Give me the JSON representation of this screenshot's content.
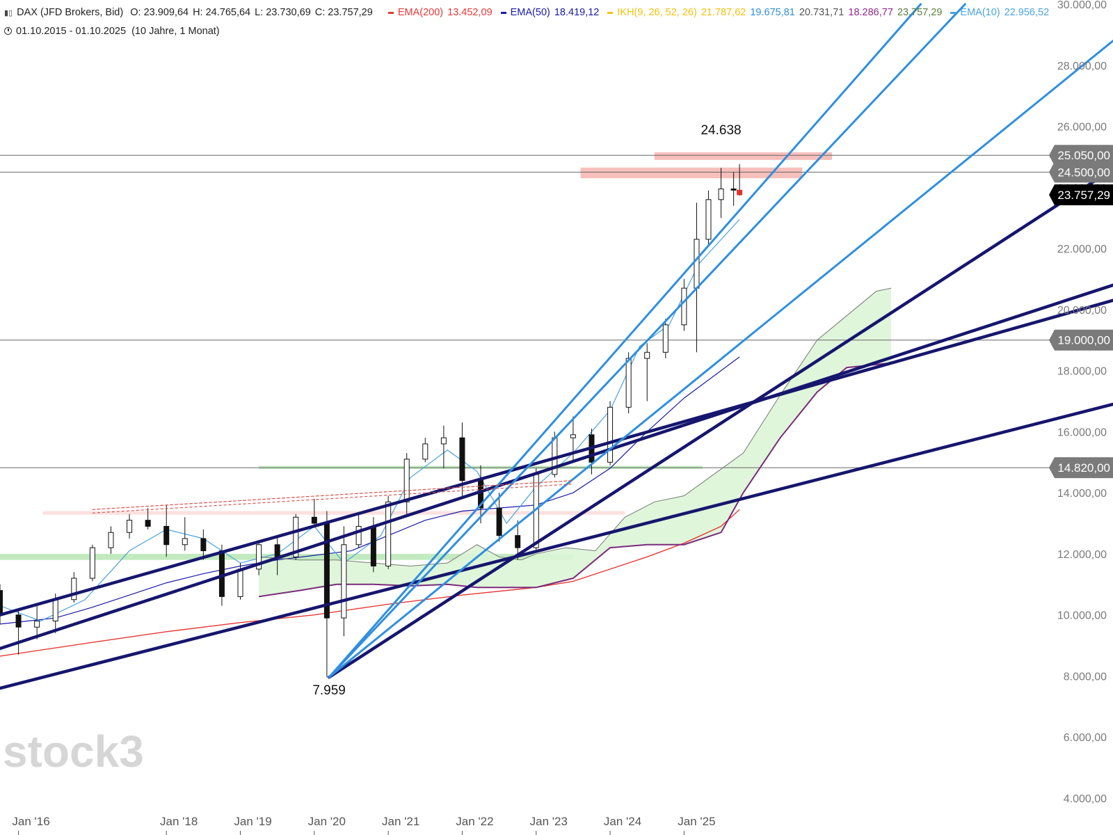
{
  "header": {
    "symbol": "DAX (JFD Brokers, Bid)",
    "ohlc": [
      {
        "key": "O:",
        "value": "23.909,64"
      },
      {
        "key": "H:",
        "value": "24.765,64"
      },
      {
        "key": "L:",
        "value": "23.730,69"
      },
      {
        "key": "C:",
        "value": "23.757,29"
      }
    ],
    "indicators": [
      {
        "label": "EMA(200)",
        "values": [
          "13.452,09"
        ],
        "color": "#e53935",
        "value_colors": [
          "#e53935"
        ]
      },
      {
        "label": "EMA(50)",
        "values": [
          "18.419,12"
        ],
        "color": "#1a1aa6",
        "value_colors": [
          "#1a1aa6"
        ]
      },
      {
        "label": "IKH(9, 26, 52, 26)",
        "values": [
          "21.787,62",
          "19.675,81",
          "20.731,71",
          "18.286,77",
          "23.757,29"
        ],
        "color": "#f4c20d",
        "value_colors": [
          "#f4c20d",
          "#2f8fd8",
          "#555555",
          "#8e2a8e",
          "#5a7f3a"
        ]
      },
      {
        "label": "EMA(10)",
        "values": [
          "22.956,52"
        ],
        "color": "#4aa3df",
        "value_colors": [
          "#4aa3df"
        ]
      }
    ],
    "period": "01.10.2015 - 01.10.2025",
    "range": "(10 Jahre, 1 Monat)"
  },
  "colors": {
    "candle_up": "#ffffff",
    "candle_down": "#111111",
    "ema200": "#e53935",
    "ema50": "#1a1aa6",
    "ema10": "#4aa3df",
    "cloud": "#dcf5d6",
    "cloud_line_a": "#777777",
    "cloud_line_b": "#7a2a7a",
    "trend_dark": "#16166e",
    "trend_light": "#2f8fe0",
    "resistance_zone": "#f08a84",
    "support_zone": "#8fd98a",
    "last_price_bg": "#000000"
  },
  "chart_data": {
    "type": "candlestick",
    "title": "DAX (JFD Brokers, Bid)",
    "timeframe": "1 Monat",
    "y_axis": {
      "ticks": [
        4000,
        6000,
        8000,
        10000,
        12000,
        14000,
        16000,
        18000,
        20000,
        22000,
        24000,
        26000,
        28000,
        30000
      ],
      "tick_labels": [
        "4.000,00",
        "6.000,00",
        "8.000,00",
        "10.000,00",
        "12.000,00",
        "14.000,00",
        "16.000,00",
        "18.000,00",
        "20.000,00",
        "22.000,00",
        "24.000,00",
        "26.000,00",
        "28.000,00",
        "30.000,00"
      ],
      "range": [
        4000,
        30000
      ]
    },
    "x_axis": {
      "ticks": [
        2016,
        2018,
        2019,
        2020,
        2021,
        2022,
        2023,
        2024,
        2025
      ],
      "tick_labels": [
        "Jan '16",
        "Jan '18",
        "Jan '19",
        "Jan '20",
        "Jan '21",
        "Jan '22",
        "Jan '23",
        "Jan '24",
        "Jan '25"
      ],
      "range": [
        2015.75,
        2030.8
      ]
    },
    "horizontal_levels": [
      {
        "value": 25050,
        "label": "25.050,00"
      },
      {
        "value": 24500,
        "label": "24.500,00"
      },
      {
        "value": 19000,
        "label": "19.000,00"
      },
      {
        "value": 14820,
        "label": "14.820,00"
      }
    ],
    "last_price": {
      "value": 23757.29,
      "label": "23.757,29"
    },
    "annotations": [
      {
        "text": "24.638",
        "x": 2025.5,
        "y": 24638
      },
      {
        "text": "7.959",
        "x": 2020.2,
        "y": 7959
      }
    ],
    "zones": [
      {
        "type": "resistance",
        "x": [
          2024.6,
          2027.0
        ],
        "y": [
          24900,
          25150
        ]
      },
      {
        "type": "resistance",
        "x": [
          2023.6,
          2026.6
        ],
        "y": [
          24300,
          24650
        ]
      },
      {
        "type": "support",
        "x": [
          2015.75,
          2023.5
        ],
        "y": [
          11800,
          12000
        ]
      },
      {
        "type": "support",
        "x": [
          2019.25,
          2025.25
        ],
        "y": [
          14780,
          14880
        ]
      },
      {
        "type": "faded_resistance",
        "x": [
          2016.33,
          2024.2
        ],
        "y": [
          13280,
          13400
        ]
      }
    ],
    "trendlines": [
      {
        "style": "dark",
        "points": [
          [
            2015.75,
            10000
          ],
          [
            2030.8,
            20300
          ]
        ]
      },
      {
        "style": "dark",
        "points": [
          [
            2015.75,
            8900
          ],
          [
            2030.8,
            20800
          ]
        ]
      },
      {
        "style": "dark",
        "points": [
          [
            2015.75,
            7600
          ],
          [
            2030.8,
            16900
          ]
        ]
      },
      {
        "style": "dark",
        "points": [
          [
            2020.2,
            7959
          ],
          [
            2030.8,
            24600
          ]
        ]
      },
      {
        "style": "light",
        "points": [
          [
            2020.2,
            7959
          ],
          [
            2028.8,
            30000
          ]
        ]
      },
      {
        "style": "light",
        "points": [
          [
            2020.2,
            7959
          ],
          [
            2028.2,
            30000
          ]
        ]
      },
      {
        "style": "light",
        "points": [
          [
            2020.2,
            7959
          ],
          [
            2030.8,
            28800
          ]
        ]
      },
      {
        "style": "dashed_red",
        "points": [
          [
            2017.0,
            13450
          ],
          [
            2023.5,
            14400
          ]
        ]
      }
    ],
    "series": [
      {
        "name": "EMA(200)",
        "type": "line",
        "color": "#e53935",
        "x": [
          2015.75,
          2017.0,
          2018.0,
          2019.0,
          2020.0,
          2021.0,
          2022.0,
          2023.0,
          2023.5,
          2024.0,
          2024.5,
          2025.0,
          2025.5,
          2025.75
        ],
        "y": [
          8650,
          9100,
          9450,
          9750,
          10000,
          10350,
          10650,
          10900,
          11100,
          11500,
          11900,
          12350,
          12900,
          13450
        ]
      },
      {
        "name": "EMA(50)",
        "type": "line",
        "color": "#1a1aa6",
        "x": [
          2015.75,
          2016.5,
          2017.0,
          2017.5,
          2018.0,
          2018.5,
          2019.0,
          2019.5,
          2020.0,
          2020.5,
          2021.0,
          2021.5,
          2022.0,
          2022.5,
          2023.0,
          2023.5,
          2024.0,
          2024.5,
          2025.0,
          2025.75
        ],
        "y": [
          9700,
          9900,
          10250,
          10650,
          11050,
          11350,
          11600,
          11800,
          11950,
          12100,
          12600,
          13100,
          13400,
          13500,
          13600,
          14000,
          14800,
          16000,
          17100,
          18450
        ]
      },
      {
        "name": "EMA(10)",
        "type": "line",
        "color": "#4aa3df",
        "x": [
          2015.75,
          2016.3,
          2016.9,
          2017.5,
          2018.0,
          2018.5,
          2019.0,
          2019.5,
          2020.0,
          2020.4,
          2020.9,
          2021.3,
          2021.8,
          2022.2,
          2022.6,
          2023.0,
          2023.5,
          2024.0,
          2024.4,
          2024.8,
          2025.2,
          2025.75
        ],
        "y": [
          10300,
          9800,
          10500,
          12100,
          12800,
          12500,
          11700,
          12000,
          12900,
          11700,
          12600,
          14500,
          15400,
          14700,
          13000,
          14200,
          15300,
          16700,
          18800,
          19500,
          21500,
          22950
        ]
      },
      {
        "name": "IKH Senkou A",
        "type": "line",
        "color": "#777777",
        "x": [
          2019.25,
          2019.8,
          2020.3,
          2020.8,
          2021.3,
          2021.8,
          2022.2,
          2022.5,
          2022.8,
          2023.0,
          2023.4,
          2023.8,
          2024.2,
          2024.6,
          2025.0,
          2025.4,
          2025.8,
          2026.3,
          2026.8,
          2027.4,
          2027.6,
          2027.8
        ],
        "y": [
          11900,
          11800,
          11800,
          11700,
          11600,
          11700,
          12300,
          11900,
          11800,
          12000,
          12200,
          12100,
          13200,
          13700,
          13900,
          14600,
          15300,
          17200,
          19000,
          20200,
          20600,
          20700
        ]
      },
      {
        "name": "IKH Senkou B",
        "type": "line",
        "color": "#7a2a7a",
        "x": [
          2019.25,
          2019.8,
          2020.3,
          2020.8,
          2021.3,
          2021.8,
          2022.2,
          2022.6,
          2023.0,
          2023.5,
          2024.0,
          2024.5,
          2025.0,
          2025.5,
          2025.8,
          2026.3,
          2026.8,
          2027.2,
          2027.6,
          2027.8
        ],
        "y": [
          10600,
          10800,
          11000,
          11000,
          10950,
          11000,
          10900,
          10900,
          10900,
          11200,
          12200,
          12300,
          12300,
          12700,
          14000,
          15800,
          17300,
          18100,
          18200,
          18250
        ]
      }
    ],
    "candles": [
      {
        "x": 2015.75,
        "o": 10800,
        "h": 11000,
        "l": 9700,
        "c": 10000
      },
      {
        "x": 2016.0,
        "o": 10000,
        "h": 10200,
        "l": 8700,
        "c": 9600
      },
      {
        "x": 2016.25,
        "o": 9600,
        "h": 10300,
        "l": 9200,
        "c": 9800
      },
      {
        "x": 2016.5,
        "o": 9800,
        "h": 10700,
        "l": 9400,
        "c": 10500
      },
      {
        "x": 2016.75,
        "o": 10500,
        "h": 11400,
        "l": 10400,
        "c": 11200
      },
      {
        "x": 2017.0,
        "o": 11200,
        "h": 12300,
        "l": 11100,
        "c": 12200
      },
      {
        "x": 2017.25,
        "o": 12200,
        "h": 12900,
        "l": 12000,
        "c": 12700
      },
      {
        "x": 2017.5,
        "o": 12700,
        "h": 13300,
        "l": 12500,
        "c": 13100
      },
      {
        "x": 2017.75,
        "o": 13100,
        "h": 13500,
        "l": 12800,
        "c": 12900
      },
      {
        "x": 2018.0,
        "o": 12900,
        "h": 13600,
        "l": 11900,
        "c": 12300
      },
      {
        "x": 2018.25,
        "o": 12300,
        "h": 13200,
        "l": 12100,
        "c": 12500
      },
      {
        "x": 2018.5,
        "o": 12500,
        "h": 12800,
        "l": 11800,
        "c": 12100
      },
      {
        "x": 2018.75,
        "o": 12100,
        "h": 12300,
        "l": 10300,
        "c": 10600
      },
      {
        "x": 2019.0,
        "o": 10600,
        "h": 11700,
        "l": 10500,
        "c": 11500
      },
      {
        "x": 2019.25,
        "o": 11500,
        "h": 12400,
        "l": 11300,
        "c": 12300
      },
      {
        "x": 2019.5,
        "o": 12300,
        "h": 12600,
        "l": 11300,
        "c": 11900
      },
      {
        "x": 2019.75,
        "o": 11900,
        "h": 13300,
        "l": 11800,
        "c": 13200
      },
      {
        "x": 2020.0,
        "o": 13200,
        "h": 13800,
        "l": 12900,
        "c": 13000
      },
      {
        "x": 2020.17,
        "o": 13000,
        "h": 13400,
        "l": 7959,
        "c": 9900
      },
      {
        "x": 2020.4,
        "o": 9900,
        "h": 12900,
        "l": 9300,
        "c": 12300
      },
      {
        "x": 2020.6,
        "o": 12300,
        "h": 13300,
        "l": 12200,
        "c": 12900
      },
      {
        "x": 2020.8,
        "o": 12900,
        "h": 13200,
        "l": 11400,
        "c": 11600
      },
      {
        "x": 2021.0,
        "o": 11600,
        "h": 13900,
        "l": 11500,
        "c": 13700
      },
      {
        "x": 2021.25,
        "o": 13700,
        "h": 15300,
        "l": 13300,
        "c": 15100
      },
      {
        "x": 2021.5,
        "o": 15100,
        "h": 15800,
        "l": 15000,
        "c": 15600
      },
      {
        "x": 2021.75,
        "o": 15600,
        "h": 16200,
        "l": 14800,
        "c": 15800
      },
      {
        "x": 2022.0,
        "o": 15800,
        "h": 16300,
        "l": 13800,
        "c": 14400
      },
      {
        "x": 2022.25,
        "o": 14400,
        "h": 14900,
        "l": 13000,
        "c": 13500
      },
      {
        "x": 2022.5,
        "o": 13500,
        "h": 14000,
        "l": 12400,
        "c": 12600
      },
      {
        "x": 2022.75,
        "o": 12600,
        "h": 13100,
        "l": 11800,
        "c": 12200
      },
      {
        "x": 2023.0,
        "o": 12200,
        "h": 14800,
        "l": 12100,
        "c": 14600
      },
      {
        "x": 2023.25,
        "o": 14600,
        "h": 16000,
        "l": 14500,
        "c": 15800
      },
      {
        "x": 2023.5,
        "o": 15800,
        "h": 16500,
        "l": 15000,
        "c": 15900
      },
      {
        "x": 2023.75,
        "o": 15900,
        "h": 16100,
        "l": 14600,
        "c": 15000
      },
      {
        "x": 2024.0,
        "o": 15000,
        "h": 17000,
        "l": 14900,
        "c": 16800
      },
      {
        "x": 2024.25,
        "o": 16800,
        "h": 18600,
        "l": 16600,
        "c": 18400
      },
      {
        "x": 2024.5,
        "o": 18400,
        "h": 18900,
        "l": 17000,
        "c": 18600
      },
      {
        "x": 2024.75,
        "o": 18600,
        "h": 19700,
        "l": 18400,
        "c": 19500
      },
      {
        "x": 2025.0,
        "o": 19500,
        "h": 21000,
        "l": 19300,
        "c": 20700
      },
      {
        "x": 2025.17,
        "o": 20700,
        "h": 23500,
        "l": 18600,
        "c": 22300
      },
      {
        "x": 2025.33,
        "o": 22300,
        "h": 23900,
        "l": 22100,
        "c": 23600
      },
      {
        "x": 2025.5,
        "o": 23600,
        "h": 24638,
        "l": 23000,
        "c": 23950
      },
      {
        "x": 2025.67,
        "o": 23950,
        "h": 24500,
        "l": 23400,
        "c": 23909
      },
      {
        "x": 2025.75,
        "o": 23909.64,
        "h": 24765.64,
        "l": 23730.69,
        "c": 23757.29
      }
    ]
  },
  "watermark": "stock3"
}
